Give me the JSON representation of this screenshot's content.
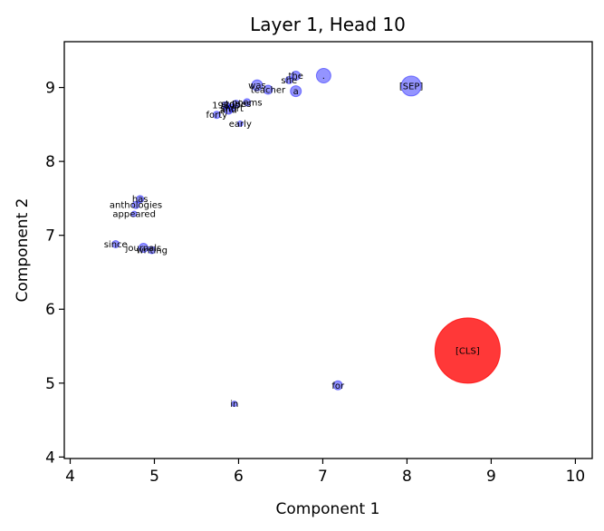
{
  "chart_data": {
    "type": "scatter",
    "title": "Layer 1, Head 10",
    "xlabel": "Component 1",
    "ylabel": "Component 2",
    "xlim": [
      3.93,
      10.2
    ],
    "ylim": [
      3.98,
      9.62
    ],
    "xticks": [
      4,
      5,
      6,
      7,
      8,
      9,
      10
    ],
    "yticks": [
      4,
      5,
      6,
      7,
      8,
      9
    ],
    "grid": false,
    "colors": {
      "tokens": "#0000ff",
      "cls": "#ff0000"
    },
    "points": [
      {
        "label": "[CLS]",
        "x": 8.72,
        "y": 5.44,
        "size": 36,
        "highlight": true
      },
      {
        "label": "[SEP]",
        "x": 8.05,
        "y": 9.02,
        "size": 11
      },
      {
        "label": ".",
        "x": 7.01,
        "y": 9.16,
        "size": 8
      },
      {
        "label": "the",
        "x": 6.68,
        "y": 9.16,
        "size": 5
      },
      {
        "label": "she",
        "x": 6.6,
        "y": 9.1,
        "size": 4
      },
      {
        "label": "a",
        "x": 6.68,
        "y": 8.95,
        "size": 6
      },
      {
        "label": "was",
        "x": 6.22,
        "y": 9.03,
        "size": 6
      },
      {
        "label": "teacher",
        "x": 6.35,
        "y": 8.97,
        "size": 5
      },
      {
        "label": "poems",
        "x": 6.1,
        "y": 8.8,
        "size": 4
      },
      {
        "label": "stories",
        "x": 5.97,
        "y": 8.78,
        "size": 4
      },
      {
        "label": "1980s",
        "x": 5.85,
        "y": 8.76,
        "size": 4
      },
      {
        "label": "short",
        "x": 5.92,
        "y": 8.72,
        "size": 4
      },
      {
        "label": "and",
        "x": 5.88,
        "y": 8.7,
        "size": 5
      },
      {
        "label": "forty",
        "x": 5.74,
        "y": 8.63,
        "size": 4
      },
      {
        "label": "early",
        "x": 6.02,
        "y": 8.51,
        "size": 3
      },
      {
        "label": "has",
        "x": 4.83,
        "y": 7.49,
        "size": 4
      },
      {
        "label": "anthologies",
        "x": 4.78,
        "y": 7.41,
        "size": 4
      },
      {
        "label": "appeared",
        "x": 4.76,
        "y": 7.29,
        "size": 3
      },
      {
        "label": "since",
        "x": 4.54,
        "y": 6.88,
        "size": 4
      },
      {
        "label": "journals",
        "x": 4.87,
        "y": 6.83,
        "size": 5
      },
      {
        "label": "writing",
        "x": 4.97,
        "y": 6.8,
        "size": 4
      },
      {
        "label": "for",
        "x": 7.18,
        "y": 4.97,
        "size": 5
      },
      {
        "label": "in",
        "x": 5.95,
        "y": 4.72,
        "size": 3
      }
    ]
  }
}
